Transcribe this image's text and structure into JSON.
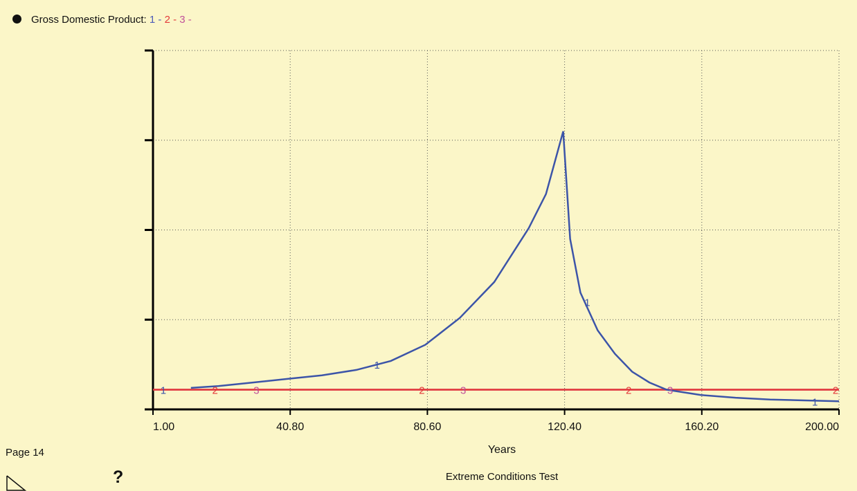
{
  "legend": {
    "title": "Gross Domestic Product:",
    "entries": [
      {
        "label": "1 -",
        "color": "#4a5ab8"
      },
      {
        "label": "2 -",
        "color": "#e33a3a"
      },
      {
        "label": "3 -",
        "color": "#c0509a"
      }
    ]
  },
  "page_label": "Page 14",
  "help_icon": "?",
  "chart_data": {
    "type": "line",
    "title": "Extreme Conditions Test",
    "xlabel": "Years",
    "ylabel": "",
    "xlim": [
      1,
      200
    ],
    "ylim": [
      0,
      4
    ],
    "xticks": [
      1,
      40.8,
      80.6,
      120.4,
      160.2,
      200
    ],
    "xtick_labels": [
      "1.00",
      "40.80",
      "80.60",
      "120.40",
      "160.20",
      "200.00"
    ],
    "grid": true,
    "series": [
      {
        "name": "1",
        "color": "#3c54a8",
        "x": [
          12,
          20,
          30,
          40,
          50,
          60,
          70,
          80,
          90,
          100,
          110,
          115,
          120,
          122,
          125,
          130,
          135,
          140,
          145,
          150,
          160,
          170,
          180,
          190,
          200
        ],
        "y": [
          0.24,
          0.26,
          0.3,
          0.34,
          0.38,
          0.44,
          0.54,
          0.72,
          1.02,
          1.42,
          2.02,
          2.4,
          3.1,
          1.9,
          1.3,
          0.88,
          0.62,
          0.42,
          0.3,
          0.22,
          0.16,
          0.13,
          0.11,
          0.1,
          0.09
        ],
        "markers": [
          {
            "x": 4,
            "y": 0.22
          },
          {
            "x": 66,
            "y": 0.5
          },
          {
            "x": 127,
            "y": 1.2
          },
          {
            "x": 193,
            "y": 0.09
          }
        ]
      },
      {
        "name": "2",
        "color": "#e33a3a",
        "x": [
          1,
          200
        ],
        "y": [
          0.22,
          0.22
        ],
        "markers": [
          {
            "x": 19,
            "y": 0.22
          },
          {
            "x": 79,
            "y": 0.22
          },
          {
            "x": 139,
            "y": 0.22
          },
          {
            "x": 199,
            "y": 0.22
          }
        ]
      },
      {
        "name": "3",
        "color": "#c0509a",
        "x": [
          1,
          200
        ],
        "y": [
          0.22,
          0.22
        ],
        "markers": [
          {
            "x": 31,
            "y": 0.22
          },
          {
            "x": 91,
            "y": 0.22
          },
          {
            "x": 151,
            "y": 0.22
          }
        ]
      }
    ]
  }
}
